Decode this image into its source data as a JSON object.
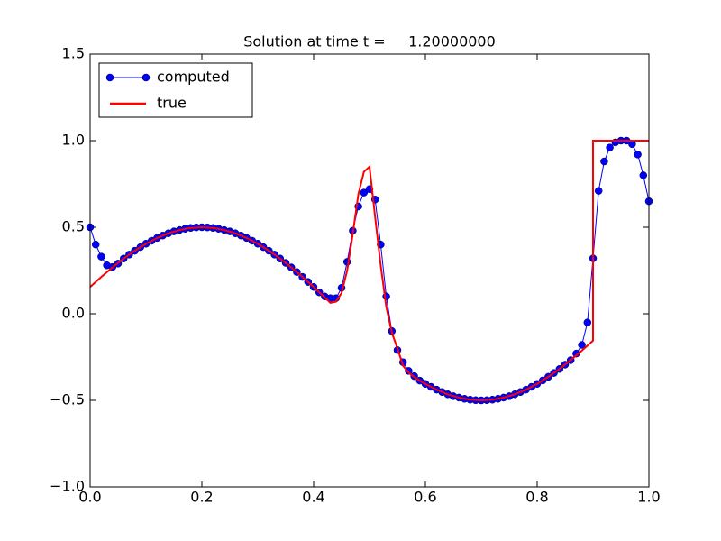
{
  "chart_data": {
    "type": "line",
    "title": "Solution at time t =     1.20000000",
    "xlim": [
      0,
      1
    ],
    "ylim": [
      -1,
      1.5
    ],
    "xticks": [
      {
        "value": 0,
        "label": "0.0"
      },
      0.2,
      0.4,
      0.6,
      0.8,
      {
        "value": 1,
        "label": "1.0"
      }
    ],
    "yticks": [
      {
        "value": -1,
        "label": "−1.0"
      },
      {
        "value": -0.5,
        "label": "−0.5"
      },
      {
        "value": 0,
        "label": "0.0"
      },
      0.5,
      {
        "value": 1,
        "label": "1.0"
      },
      1.5
    ],
    "legend": "upper left",
    "series": [
      {
        "name": "computed",
        "color": "#0000ff",
        "marker": "o",
        "x": [
          0,
          0.01,
          0.02,
          0.03,
          0.04,
          0.05,
          0.06,
          0.07,
          0.08,
          0.09,
          0.1,
          0.11,
          0.12,
          0.13,
          0.14,
          0.15,
          0.16,
          0.17,
          0.18,
          0.19,
          0.2,
          0.21,
          0.22,
          0.23,
          0.24,
          0.25,
          0.26,
          0.27,
          0.28,
          0.29,
          0.3,
          0.31,
          0.32,
          0.33,
          0.34,
          0.35,
          0.36,
          0.37,
          0.38,
          0.39,
          0.4,
          0.41,
          0.42,
          0.43,
          0.44,
          0.45,
          0.46,
          0.47,
          0.48,
          0.49,
          0.5,
          0.51,
          0.52,
          0.53,
          0.54,
          0.55,
          0.56,
          0.57,
          0.58,
          0.59,
          0.6,
          0.61,
          0.62,
          0.63,
          0.64,
          0.65,
          0.66,
          0.67,
          0.68,
          0.69,
          0.7,
          0.71,
          0.72,
          0.73,
          0.74,
          0.75,
          0.76,
          0.77,
          0.78,
          0.79,
          0.8,
          0.81,
          0.82,
          0.83,
          0.84,
          0.85,
          0.86,
          0.87,
          0.88,
          0.89,
          0.9,
          0.91,
          0.92,
          0.93,
          0.94,
          0.95,
          0.96,
          0.97,
          0.98,
          0.99,
          1
        ],
        "values": [
          0.5,
          0.4,
          0.33,
          0.28,
          0.27,
          0.29,
          0.319,
          0.342,
          0.364,
          0.385,
          0.405,
          0.422,
          0.438,
          0.452,
          0.465,
          0.476,
          0.484,
          0.491,
          0.496,
          0.499,
          0.5,
          0.499,
          0.496,
          0.491,
          0.484,
          0.476,
          0.465,
          0.452,
          0.438,
          0.422,
          0.405,
          0.385,
          0.364,
          0.342,
          0.319,
          0.294,
          0.268,
          0.241,
          0.213,
          0.184,
          0.155,
          0.124,
          0.1,
          0.09,
          0.09,
          0.15,
          0.3,
          0.48,
          0.62,
          0.7,
          0.72,
          0.66,
          0.4,
          0.1,
          -0.1,
          -0.21,
          -0.28,
          -0.33,
          -0.36,
          -0.386,
          -0.405,
          -0.422,
          -0.438,
          -0.452,
          -0.465,
          -0.476,
          -0.484,
          -0.491,
          -0.496,
          -0.499,
          -0.5,
          -0.499,
          -0.496,
          -0.491,
          -0.484,
          -0.476,
          -0.465,
          -0.452,
          -0.438,
          -0.422,
          -0.405,
          -0.385,
          -0.364,
          -0.342,
          -0.319,
          -0.294,
          -0.268,
          -0.23,
          -0.18,
          -0.05,
          0.32,
          0.71,
          0.88,
          0.96,
          0.99,
          1,
          1,
          0.98,
          0.92,
          0.8,
          0.65
        ]
      },
      {
        "name": "true",
        "color": "#ff0000",
        "x": [
          0,
          0.02,
          0.04,
          0.06,
          0.08,
          0.1,
          0.12,
          0.14,
          0.16,
          0.18,
          0.2,
          0.22,
          0.24,
          0.26,
          0.28,
          0.3,
          0.32,
          0.34,
          0.36,
          0.38,
          0.4,
          0.41,
          0.42,
          0.43,
          0.44,
          0.45,
          0.46,
          0.47,
          0.48,
          0.49,
          0.5,
          0.51,
          0.52,
          0.53,
          0.54,
          0.55,
          0.56,
          0.57,
          0.58,
          0.59,
          0.6,
          0.62,
          0.64,
          0.66,
          0.68,
          0.7,
          0.72,
          0.74,
          0.76,
          0.78,
          0.8,
          0.82,
          0.84,
          0.86,
          0.88,
          0.9,
          0.9,
          1
        ],
        "values": [
          0.155,
          0.213,
          0.268,
          0.319,
          0.364,
          0.405,
          0.438,
          0.465,
          0.484,
          0.496,
          0.5,
          0.496,
          0.484,
          0.465,
          0.438,
          0.405,
          0.364,
          0.319,
          0.268,
          0.213,
          0.155,
          0.125,
          0.094,
          0.063,
          0.07,
          0.12,
          0.25,
          0.46,
          0.69,
          0.82,
          0.85,
          0.56,
          0.28,
          0.04,
          -0.11,
          -0.2,
          -0.3,
          -0.34,
          -0.364,
          -0.386,
          -0.405,
          -0.438,
          -0.465,
          -0.484,
          -0.496,
          -0.5,
          -0.496,
          -0.484,
          -0.465,
          -0.438,
          -0.405,
          -0.364,
          -0.319,
          -0.268,
          -0.213,
          -0.155,
          1,
          1
        ]
      }
    ]
  }
}
